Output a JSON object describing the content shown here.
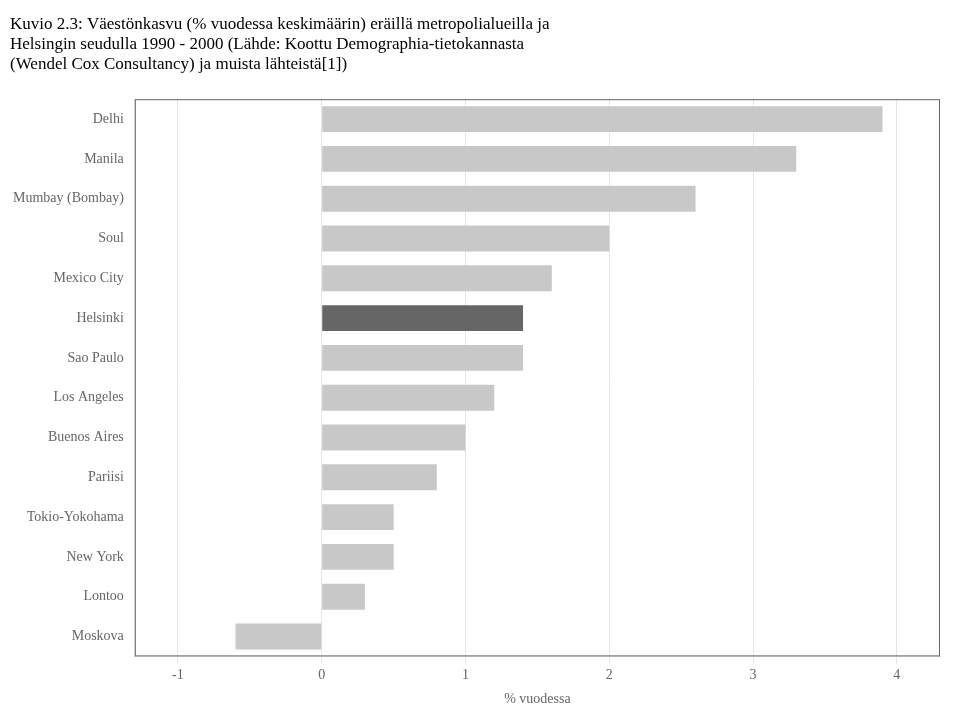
{
  "chart_data": {
    "type": "bar",
    "orientation": "horizontal",
    "title": [
      "Kuvio 2.3: Väestönkasvu (% vuodessa keskimäärin) eräillä metropolialueilla ja",
      "Helsingin seudulla 1990 - 2000 (Lähde: Koottu Demographia-tietokannasta",
      "(Wendel Cox Consultancy) ja muista lähteistä[1])"
    ],
    "categories": [
      "Delhi",
      "Manila",
      "Mumbay (Bombay)",
      "Soul",
      "Mexico City",
      "Helsinki",
      "Sao Paulo",
      "Los Angeles",
      "Buenos Aires",
      "Pariisi",
      "Tokio-Yokohama",
      "New York",
      "Lontoo",
      "Moskova"
    ],
    "values": [
      3.9,
      3.3,
      2.6,
      2.0,
      1.6,
      1.4,
      1.4,
      1.2,
      1.0,
      0.8,
      0.5,
      0.5,
      0.3,
      -0.6
    ],
    "colors": [
      "#c8c8c8",
      "#c8c8c8",
      "#c8c8c8",
      "#c8c8c8",
      "#c8c8c8",
      "#666666",
      "#c8c8c8",
      "#c8c8c8",
      "#c8c8c8",
      "#c8c8c8",
      "#c8c8c8",
      "#c8c8c8",
      "#c8c8c8",
      "#c8c8c8"
    ],
    "xlabel": "% vuodessa",
    "xlim": [
      -1.3,
      4.3
    ],
    "xticks": [
      -1,
      0,
      1,
      2,
      3,
      4
    ],
    "grid": true
  }
}
